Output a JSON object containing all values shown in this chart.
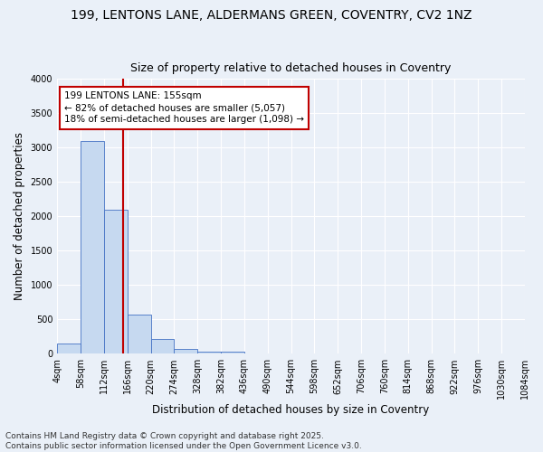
{
  "title_line1": "199, LENTONS LANE, ALDERMANS GREEN, COVENTRY, CV2 1NZ",
  "title_line2": "Size of property relative to detached houses in Coventry",
  "xlabel": "Distribution of detached houses by size in Coventry",
  "ylabel": "Number of detached properties",
  "bar_values": [
    150,
    3100,
    2100,
    575,
    210,
    75,
    35,
    25,
    0,
    0,
    0,
    0,
    0,
    0,
    0,
    0,
    0,
    0,
    0,
    0
  ],
  "bin_labels": [
    "4sqm",
    "58sqm",
    "112sqm",
    "166sqm",
    "220sqm",
    "274sqm",
    "328sqm",
    "382sqm",
    "436sqm",
    "490sqm",
    "544sqm",
    "598sqm",
    "652sqm",
    "706sqm",
    "760sqm",
    "814sqm",
    "868sqm",
    "922sqm",
    "976sqm",
    "1030sqm",
    "1084sqm"
  ],
  "bar_color": "#c6d9f0",
  "bar_edge_color": "#4472c4",
  "vline_x": 2.82,
  "vline_color": "#c00000",
  "annotation_text": "199 LENTONS LANE: 155sqm\n← 82% of detached houses are smaller (5,057)\n18% of semi-detached houses are larger (1,098) →",
  "annotation_box_color": "#c00000",
  "ylim": [
    0,
    4000
  ],
  "yticks": [
    0,
    500,
    1000,
    1500,
    2000,
    2500,
    3000,
    3500,
    4000
  ],
  "bg_color": "#eaf0f8",
  "plot_bg": "#eaf0f8",
  "footer_line1": "Contains HM Land Registry data © Crown copyright and database right 2025.",
  "footer_line2": "Contains public sector information licensed under the Open Government Licence v3.0.",
  "title_fontsize": 10,
  "subtitle_fontsize": 9,
  "axis_label_fontsize": 8.5,
  "tick_fontsize": 7,
  "annotation_fontsize": 7.5,
  "footer_fontsize": 6.5
}
